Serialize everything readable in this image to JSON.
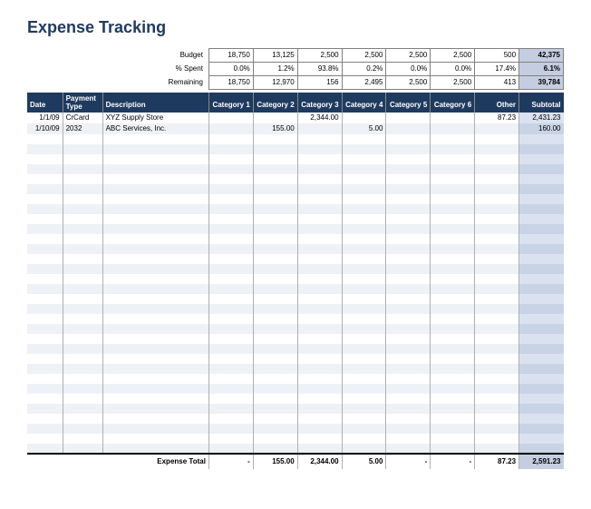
{
  "title": "Expense Tracking",
  "summary": {
    "labels": {
      "budget": "Budget",
      "pct": "% Spent",
      "remain": "Remaining"
    },
    "cols": [
      {
        "budget": "18,750",
        "pct": "0.0%",
        "remain": "18,750"
      },
      {
        "budget": "13,125",
        "pct": "1.2%",
        "remain": "12,970"
      },
      {
        "budget": "2,500",
        "pct": "93.8%",
        "remain": "156"
      },
      {
        "budget": "2,500",
        "pct": "0.2%",
        "remain": "2,495"
      },
      {
        "budget": "2,500",
        "pct": "0.0%",
        "remain": "2,500"
      },
      {
        "budget": "2,500",
        "pct": "0.0%",
        "remain": "2,500"
      },
      {
        "budget": "500",
        "pct": "17.4%",
        "remain": "413"
      }
    ],
    "totals": {
      "budget": "42,375",
      "pct": "6.1%",
      "remain": "39,784"
    }
  },
  "headers": {
    "date": "Date",
    "payType": "Payment Type",
    "desc": "Description",
    "cat1": "Category 1",
    "cat2": "Category 2",
    "cat3": "Category 3",
    "cat4": "Category 4",
    "cat5": "Category 5",
    "cat6": "Category 6",
    "other": "Other",
    "sub": "Subtotal"
  },
  "rows": [
    {
      "date": "1/1/09",
      "pay": "CrCard",
      "desc": "XYZ Supply Store",
      "c1": "",
      "c2": "",
      "c3": "2,344.00",
      "c4": "",
      "c5": "",
      "c6": "",
      "other": "87.23",
      "sub": "2,431.23"
    },
    {
      "date": "1/10/09",
      "pay": "2032",
      "desc": "ABC Services, Inc.",
      "c1": "",
      "c2": "155.00",
      "c3": "",
      "c4": "5.00",
      "c5": "",
      "c6": "",
      "other": "",
      "sub": "160.00"
    }
  ],
  "blankRows": 32,
  "totalRow": {
    "label": "Expense Total",
    "c1": "-",
    "c2": "155.00",
    "c3": "2,344.00",
    "c4": "5.00",
    "c5": "-",
    "c6": "-",
    "other": "87.23",
    "sub": "2,591.23"
  },
  "colors": {
    "title": "#1f3a5f",
    "header_bg": "#1f3a5f",
    "header_fg": "#ffffff",
    "alt_row": "#eef1f6",
    "sub_col": "#dbe2ef",
    "sub_col_alt": "#c9d3e6",
    "total_bg": "#c5cde0",
    "grid": "#b0b0b0"
  }
}
